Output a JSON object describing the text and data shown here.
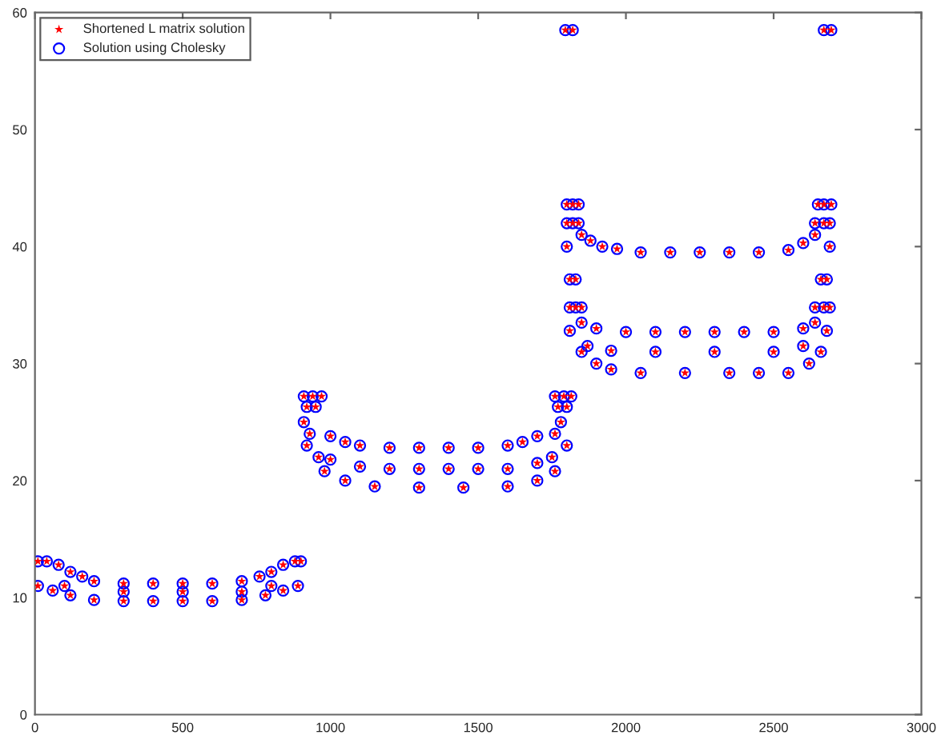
{
  "chart_data": {
    "type": "scatter",
    "x": [
      10,
      40,
      80,
      120,
      160,
      200,
      300,
      400,
      500,
      600,
      700,
      760,
      800,
      840,
      880,
      900,
      100,
      300,
      500,
      700,
      800,
      10,
      60,
      120,
      200,
      300,
      400,
      500,
      600,
      700,
      780,
      840,
      890,
      910,
      940,
      970,
      920,
      950,
      910,
      930,
      1000,
      1050,
      1100,
      1200,
      1300,
      1400,
      1500,
      1600,
      1650,
      1700,
      1760,
      1780,
      1770,
      1800,
      1760,
      1790,
      1815,
      960,
      1000,
      1100,
      1200,
      1300,
      1400,
      1500,
      1600,
      1700,
      1750,
      920,
      980,
      1050,
      1150,
      1300,
      1450,
      1600,
      1700,
      1760,
      1800,
      1795,
      1820,
      2670,
      2695,
      1800,
      1820,
      1840,
      2650,
      2670,
      2695,
      1800,
      1820,
      1840,
      2640,
      2670,
      2690,
      1800,
      1850,
      1880,
      1920,
      1970,
      2050,
      2150,
      2250,
      2350,
      2450,
      2550,
      2600,
      2640,
      2690,
      1810,
      1830,
      2660,
      2680,
      1810,
      1830,
      1850,
      2640,
      2670,
      2690,
      1810,
      1850,
      1900,
      2000,
      2100,
      2200,
      2300,
      2400,
      2500,
      2600,
      2640,
      2680,
      1870,
      1950,
      2100,
      2300,
      2500,
      2600,
      1850,
      1900,
      1950,
      2050,
      2200,
      2350,
      2450,
      2550,
      2620,
      2660
    ],
    "series": [
      {
        "name": "Shortened L matrix solution",
        "color": "#ff0000",
        "marker": "star",
        "values": [
          13.1,
          13.1,
          12.8,
          12.2,
          11.8,
          11.4,
          11.2,
          11.2,
          11.2,
          11.2,
          11.4,
          11.8,
          12.2,
          12.8,
          13.1,
          13.1,
          11.0,
          10.5,
          10.5,
          10.5,
          11.0,
          11.0,
          10.6,
          10.2,
          9.8,
          9.7,
          9.7,
          9.7,
          9.7,
          9.8,
          10.2,
          10.6,
          11.0,
          27.2,
          27.2,
          27.2,
          26.3,
          26.3,
          25.0,
          24.0,
          23.8,
          23.3,
          23.0,
          22.8,
          22.8,
          22.8,
          22.8,
          23.0,
          23.3,
          23.8,
          24.0,
          25.0,
          26.3,
          26.3,
          27.2,
          27.2,
          27.2,
          22.0,
          21.8,
          21.2,
          21.0,
          21.0,
          21.0,
          21.0,
          21.0,
          21.5,
          22.0,
          23.0,
          20.8,
          20.0,
          19.5,
          19.4,
          19.4,
          19.5,
          20.0,
          20.8,
          23.0,
          58.5,
          58.5,
          58.5,
          58.5,
          43.6,
          43.6,
          43.6,
          43.6,
          43.6,
          43.6,
          42.0,
          42.0,
          42.0,
          42.0,
          42.0,
          42.0,
          40.0,
          41.0,
          40.5,
          40.0,
          39.8,
          39.5,
          39.5,
          39.5,
          39.5,
          39.5,
          39.7,
          40.3,
          41.0,
          40.0,
          37.2,
          37.2,
          37.2,
          37.2,
          34.8,
          34.8,
          34.8,
          34.8,
          34.8,
          34.8,
          32.8,
          33.5,
          33.0,
          32.7,
          32.7,
          32.7,
          32.7,
          32.7,
          32.7,
          33.0,
          33.5,
          32.8,
          31.5,
          31.1,
          31.0,
          31.0,
          31.0,
          31.5,
          31.0,
          30.0,
          29.5,
          29.2,
          29.2,
          29.2,
          29.2,
          29.2,
          30.0,
          31.0
        ]
      },
      {
        "name": "Solution using Cholesky",
        "color": "#0000ff",
        "marker": "circle",
        "values": [
          13.1,
          13.1,
          12.8,
          12.2,
          11.8,
          11.4,
          11.2,
          11.2,
          11.2,
          11.2,
          11.4,
          11.8,
          12.2,
          12.8,
          13.1,
          13.1,
          11.0,
          10.5,
          10.5,
          10.5,
          11.0,
          11.0,
          10.6,
          10.2,
          9.8,
          9.7,
          9.7,
          9.7,
          9.7,
          9.8,
          10.2,
          10.6,
          11.0,
          27.2,
          27.2,
          27.2,
          26.3,
          26.3,
          25.0,
          24.0,
          23.8,
          23.3,
          23.0,
          22.8,
          22.8,
          22.8,
          22.8,
          23.0,
          23.3,
          23.8,
          24.0,
          25.0,
          26.3,
          26.3,
          27.2,
          27.2,
          27.2,
          22.0,
          21.8,
          21.2,
          21.0,
          21.0,
          21.0,
          21.0,
          21.0,
          21.5,
          22.0,
          23.0,
          20.8,
          20.0,
          19.5,
          19.4,
          19.4,
          19.5,
          20.0,
          20.8,
          23.0,
          58.5,
          58.5,
          58.5,
          58.5,
          43.6,
          43.6,
          43.6,
          43.6,
          43.6,
          43.6,
          42.0,
          42.0,
          42.0,
          42.0,
          42.0,
          42.0,
          40.0,
          41.0,
          40.5,
          40.0,
          39.8,
          39.5,
          39.5,
          39.5,
          39.5,
          39.5,
          39.7,
          40.3,
          41.0,
          40.0,
          37.2,
          37.2,
          37.2,
          37.2,
          34.8,
          34.8,
          34.8,
          34.8,
          34.8,
          34.8,
          32.8,
          33.5,
          33.0,
          32.7,
          32.7,
          32.7,
          32.7,
          32.7,
          32.7,
          33.0,
          33.5,
          32.8,
          31.5,
          31.1,
          31.0,
          31.0,
          31.0,
          31.5,
          31.0,
          30.0,
          29.5,
          29.2,
          29.2,
          29.2,
          29.2,
          29.2,
          30.0,
          31.0
        ]
      }
    ],
    "xlim": [
      0,
      3000
    ],
    "xticks": [
      0,
      500,
      1000,
      1500,
      2000,
      2500,
      3000
    ],
    "ylim": [
      0,
      60
    ],
    "yticks": [
      0,
      10,
      20,
      30,
      40,
      50,
      60
    ],
    "grid": false,
    "legend": "top left"
  }
}
